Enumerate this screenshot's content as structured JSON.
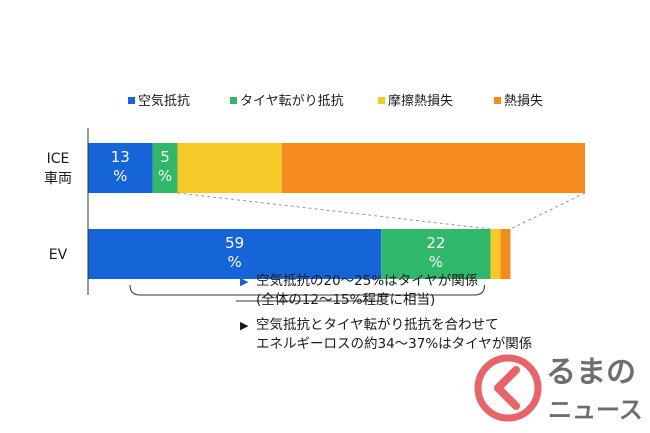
{
  "colors": {
    "air": "#1565d8",
    "tire": "#2fb86a",
    "friction": "#f6c928",
    "heat": "#f58a1f",
    "axis": "#333333",
    "note_marker": "#1f5fbf",
    "logo_red": "#e5484d",
    "logo_text": "#4a4a4a"
  },
  "chart_data": {
    "type": "bar",
    "orientation": "horizontal",
    "stacked": true,
    "categories": [
      "ICE\n車両",
      "EV"
    ],
    "series": [
      {
        "name": "空気抵抗",
        "values": [
          13,
          59
        ],
        "value_labels": [
          "13\n%",
          "59\n%"
        ]
      },
      {
        "name": "タイヤ転がり抵抗",
        "values": [
          5,
          22
        ],
        "value_labels": [
          "5\n%",
          "22\n%"
        ]
      },
      {
        "name": "摩擦熱損失",
        "values": [
          21,
          2
        ],
        "value_labels": [
          "",
          ""
        ]
      },
      {
        "name": "熱損失",
        "values": [
          61,
          2
        ],
        "value_labels": [
          "",
          ""
        ]
      }
    ],
    "legend_position": "top",
    "grid": false
  },
  "notes": {
    "marker_triangle": "▶",
    "note1_line1": "空気抵抗の20～25%はタイヤが関係",
    "note1_line2": "(全体の12～15%程度に相当)",
    "note2_line1": "空気抵抗とタイヤ転がり抵抗を合わせて",
    "note2_line2": "エネルギーロスの約34～37%はタイヤが関係"
  },
  "logo": {
    "text_top": "るまの",
    "text_bottom": "ニュース"
  }
}
